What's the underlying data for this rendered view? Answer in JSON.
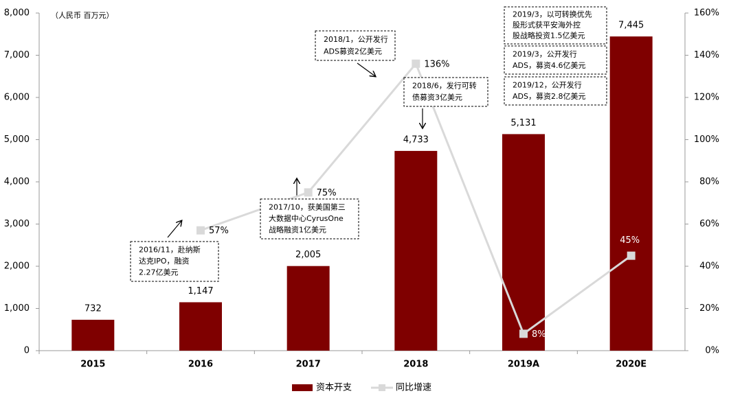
{
  "chart_data": {
    "type": "combo",
    "unit_label": "（人民币 百万元）",
    "categories": [
      "2015",
      "2016",
      "2017",
      "2018",
      "2019A",
      "2020E"
    ],
    "series": [
      {
        "name": "资本开支",
        "type": "bar",
        "color": "#7f0000",
        "values": [
          732,
          1147,
          2005,
          4733,
          5131,
          7445
        ],
        "value_labels": [
          "732",
          "1,147",
          "2,005",
          "4,733",
          "5,131",
          "7,445"
        ]
      },
      {
        "name": "同比增速",
        "type": "line",
        "axis": "y2",
        "color": "#d9d9d9",
        "values": [
          null,
          57,
          75,
          136,
          8,
          45
        ],
        "value_labels": [
          null,
          "57%",
          "75%",
          "136%",
          "8%",
          "45%"
        ]
      }
    ],
    "ylim": [
      0,
      8000
    ],
    "yticks": [
      0,
      {
        "value": 1000,
        "label": "1,000"
      },
      {
        "value": 2000,
        "label": "2,000"
      },
      {
        "value": 3000,
        "label": "3,000"
      },
      {
        "value": 4000,
        "label": "4,000"
      },
      {
        "value": 5000,
        "label": "5,000"
      },
      {
        "value": 6000,
        "label": "6,000"
      },
      {
        "value": 7000,
        "label": "7,000"
      },
      {
        "value": 8000,
        "label": "8,000"
      }
    ],
    "y2lim": [
      0,
      160
    ],
    "y2ticks": [
      {
        "value": 0,
        "label": "0%"
      },
      {
        "value": 20,
        "label": "20%"
      },
      {
        "value": 40,
        "label": "40%"
      },
      {
        "value": 60,
        "label": "60%"
      },
      {
        "value": 80,
        "label": "80%"
      },
      {
        "value": 100,
        "label": "100%"
      },
      {
        "value": 120,
        "label": "120%"
      },
      {
        "value": 140,
        "label": "140%"
      },
      {
        "value": 160,
        "label": "160%"
      }
    ],
    "grid": false,
    "legend": "bottom",
    "annotations": [
      {
        "lines": [
          "2016/11，赴纳斯",
          "达克IPO，融资",
          "2.27亿美元"
        ]
      },
      {
        "lines": [
          "2017/10，获美国第三",
          "大数据中心CyrusOne",
          "战略融资1亿美元"
        ]
      },
      {
        "lines": [
          "2018/1，公开发行",
          "ADS募资2亿美元"
        ]
      },
      {
        "lines": [
          "2018/6，发行可转",
          "债募资3亿美元"
        ]
      },
      {
        "lines": [
          "2019/3，以可转换优先",
          "股形式获平安海外控",
          "股战略投资1.5亿美元"
        ]
      },
      {
        "lines": [
          "2019/3，公开发行",
          "ADS，募资4.6亿美元"
        ]
      },
      {
        "lines": [
          "2019/12，公开发行",
          "ADS，募资2.8亿美元"
        ]
      }
    ]
  }
}
